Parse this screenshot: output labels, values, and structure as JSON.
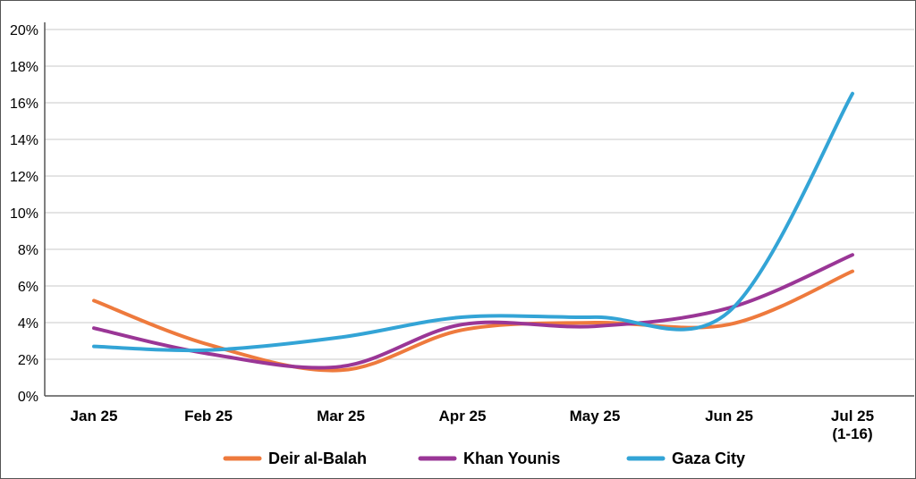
{
  "chart_data": {
    "type": "line",
    "categories": [
      "Jan 25",
      "Feb 25",
      "Mar 25",
      "Apr 25",
      "May 25",
      "Jun 25",
      "Jul 25\n(1-16)"
    ],
    "y_ticks": [
      "0%",
      "2%",
      "4%",
      "6%",
      "8%",
      "10%",
      "12%",
      "14%",
      "16%",
      "18%",
      "20%"
    ],
    "ylim": [
      0,
      20
    ],
    "y_unit": "%",
    "grid": true,
    "legend_position": "bottom",
    "series": [
      {
        "name": "Deir al-Balah",
        "color": "#ee7a3d",
        "values": [
          5.2,
          2.8,
          1.4,
          3.6,
          4.0,
          3.9,
          6.8
        ]
      },
      {
        "name": "Khan Younis",
        "color": "#9a3696",
        "values": [
          3.7,
          2.3,
          1.6,
          3.9,
          3.8,
          4.8,
          7.7
        ]
      },
      {
        "name": "Gaza City",
        "color": "#33a4d6",
        "values": [
          2.7,
          2.5,
          3.2,
          4.3,
          4.3,
          4.6,
          16.5
        ]
      }
    ]
  }
}
